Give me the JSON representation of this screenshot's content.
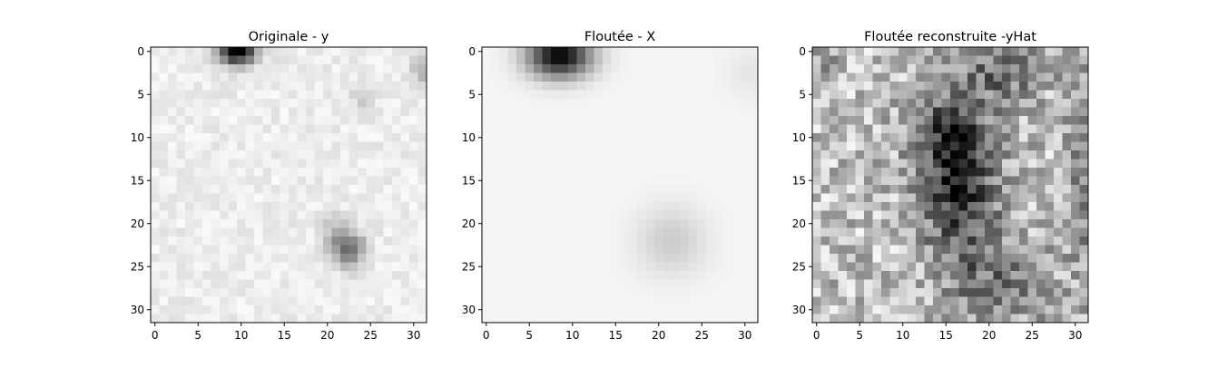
{
  "chart_data": [
    {
      "type": "heatmap",
      "title": "Originale - y",
      "colormap": "gray_r",
      "grid": false,
      "xlim": [
        -0.5,
        31.5
      ],
      "ylim": [
        31.5,
        -0.5
      ],
      "xticks": [
        0,
        5,
        10,
        15,
        20,
        25,
        30
      ],
      "yticks": [
        0,
        5,
        10,
        15,
        20,
        25,
        30
      ],
      "blobs": [
        {
          "x": 9.5,
          "y": 0.0,
          "sx": 1.6,
          "sy": 1.1,
          "amp": 0.95
        },
        {
          "x": 22.5,
          "y": 23.0,
          "sx": 1.3,
          "sy": 1.4,
          "amp": 0.5
        },
        {
          "x": 31.0,
          "y": 2.0,
          "sx": 0.9,
          "sy": 1.3,
          "amp": 0.25
        },
        {
          "x": 24.0,
          "y": 5.5,
          "sx": 1.0,
          "sy": 1.0,
          "amp": 0.12
        },
        {
          "x": 21.0,
          "y": 21.0,
          "sx": 1.2,
          "sy": 1.5,
          "amp": 0.18
        }
      ],
      "background": 0.07,
      "noise": 0.05
    },
    {
      "type": "heatmap",
      "title": "Floutée - X",
      "colormap": "gray_r",
      "grid": false,
      "xlim": [
        -0.5,
        31.5
      ],
      "ylim": [
        31.5,
        -0.5
      ],
      "xticks": [
        0,
        5,
        10,
        15,
        20,
        25,
        30
      ],
      "yticks": [
        0,
        5,
        10,
        15,
        20,
        25,
        30
      ],
      "blobs": [
        {
          "x": 8.5,
          "y": 0.5,
          "sx": 2.6,
          "sy": 1.8,
          "amp": 0.95
        },
        {
          "x": 21.5,
          "y": 22.0,
          "sx": 2.8,
          "sy": 2.8,
          "amp": 0.16
        },
        {
          "x": 31.0,
          "y": 2.5,
          "sx": 2.2,
          "sy": 2.2,
          "amp": 0.06
        }
      ],
      "background": 0.04,
      "noise": 0.0
    },
    {
      "type": "heatmap",
      "title": "Floutée reconstruite -yHat",
      "colormap": "gray_r",
      "grid": false,
      "xlim": [
        -0.5,
        31.5
      ],
      "ylim": [
        31.5,
        -0.5
      ],
      "xticks": [
        0,
        5,
        10,
        15,
        20,
        25,
        30
      ],
      "yticks": [
        0,
        5,
        10,
        15,
        20,
        25,
        30
      ],
      "blobs": [
        {
          "x": 16.5,
          "y": 15.0,
          "sx": 3.0,
          "sy": 6.5,
          "amp": 0.6
        },
        {
          "x": 14.5,
          "y": 9.0,
          "sx": 3.0,
          "sy": 3.0,
          "amp": 0.25
        },
        {
          "x": 22.0,
          "y": 2.0,
          "sx": 3.0,
          "sy": 2.5,
          "amp": 0.35
        },
        {
          "x": 21.0,
          "y": 27.0,
          "sx": 4.0,
          "sy": 4.0,
          "amp": 0.25
        },
        {
          "x": 31.0,
          "y": 16.0,
          "sx": 1.5,
          "sy": 8.0,
          "amp": 0.22
        },
        {
          "x": 0.0,
          "y": 2.0,
          "sx": 2.0,
          "sy": 2.0,
          "amp": 0.15
        }
      ],
      "background": 0.25,
      "noise": 0.22
    }
  ]
}
